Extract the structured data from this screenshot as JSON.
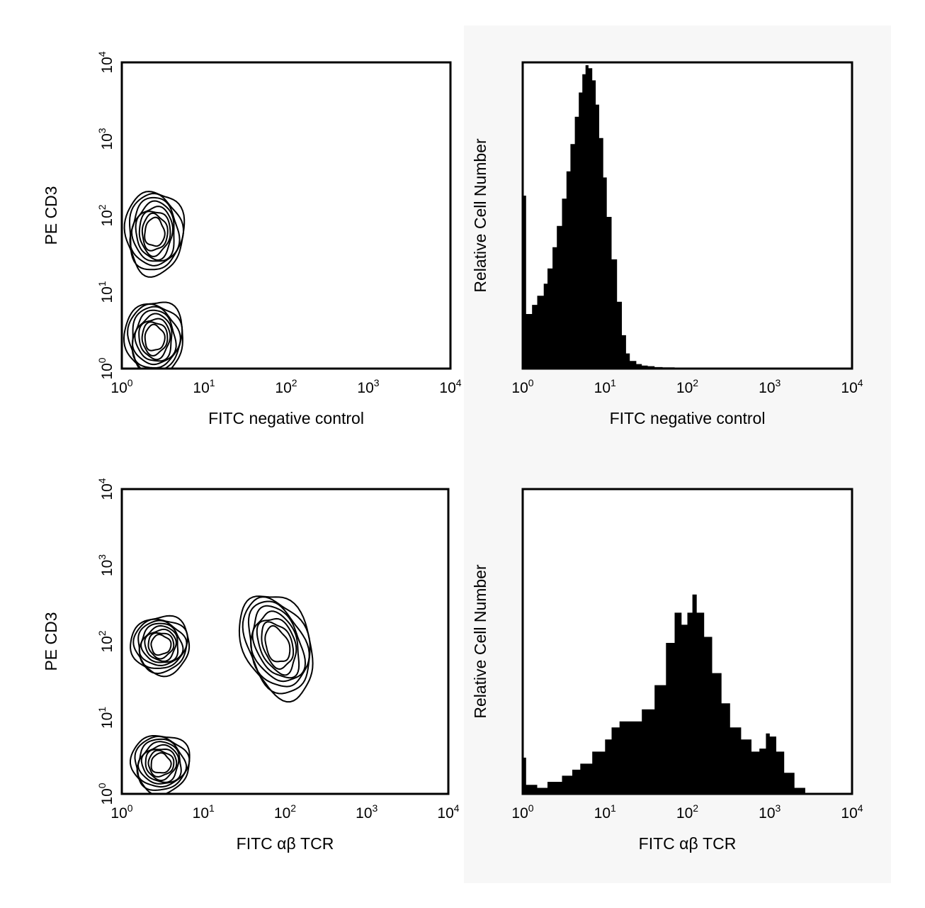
{
  "chart_data": [
    {
      "type": "contour",
      "panel": "top-left",
      "xlabel": "FITC negative control",
      "ylabel": "PE CD3",
      "xscale": "log",
      "yscale": "log",
      "xlim": [
        1,
        10000
      ],
      "ylim": [
        1,
        10000
      ],
      "xticks": [
        {
          "base": "10",
          "exp": "0"
        },
        {
          "base": "10",
          "exp": "1"
        },
        {
          "base": "10",
          "exp": "2"
        },
        {
          "base": "10",
          "exp": "3"
        },
        {
          "base": "10",
          "exp": "4"
        }
      ],
      "yticks": [
        {
          "base": "10",
          "exp": "0"
        },
        {
          "base": "10",
          "exp": "1"
        },
        {
          "base": "10",
          "exp": "2"
        },
        {
          "base": "10",
          "exp": "3"
        },
        {
          "base": "10",
          "exp": "4"
        }
      ],
      "populations": [
        {
          "name": "CD3+ cluster",
          "x_center": 2.5,
          "y_center": 60
        },
        {
          "name": "CD3- cluster",
          "x_center": 2.5,
          "y_center": 2.5
        }
      ],
      "contour_levels": 8
    },
    {
      "type": "histogram",
      "panel": "top-right",
      "xlabel": "FITC negative control",
      "ylabel": "Relative Cell Number",
      "xscale": "log",
      "xlim": [
        1,
        10000
      ],
      "xticks": [
        {
          "base": "10",
          "exp": "0"
        },
        {
          "base": "10",
          "exp": "1"
        },
        {
          "base": "10",
          "exp": "2"
        },
        {
          "base": "10",
          "exp": "3"
        },
        {
          "base": "10",
          "exp": "4"
        }
      ],
      "x": [
        1.0,
        1.1,
        1.3,
        1.5,
        1.8,
        2.0,
        2.3,
        2.6,
        3.0,
        3.4,
        3.8,
        4.3,
        4.8,
        5.3,
        5.8,
        6.3,
        7.0,
        7.7,
        8.5,
        9.5,
        10.5,
        12.0,
        14.0,
        16.0,
        18.0,
        20.0,
        24.0,
        28.0,
        33.0,
        40.0,
        50.0,
        70.0,
        100.0,
        10000.0
      ],
      "values": [
        0.57,
        0.18,
        0.21,
        0.24,
        0.28,
        0.33,
        0.4,
        0.47,
        0.56,
        0.65,
        0.74,
        0.83,
        0.91,
        0.97,
        1.0,
        0.99,
        0.95,
        0.87,
        0.76,
        0.63,
        0.5,
        0.36,
        0.22,
        0.11,
        0.05,
        0.025,
        0.015,
        0.01,
        0.008,
        0.005,
        0.004,
        0.0,
        0.0,
        0.0
      ]
    },
    {
      "type": "contour",
      "panel": "bottom-left",
      "xlabel": "FITC αβ TCR",
      "ylabel": "PE CD3",
      "xscale": "log",
      "yscale": "log",
      "xlim": [
        1,
        10000
      ],
      "ylim": [
        1,
        10000
      ],
      "xticks": [
        {
          "base": "10",
          "exp": "0"
        },
        {
          "base": "10",
          "exp": "1"
        },
        {
          "base": "10",
          "exp": "2"
        },
        {
          "base": "10",
          "exp": "3"
        },
        {
          "base": "10",
          "exp": "4"
        }
      ],
      "yticks": [
        {
          "base": "10",
          "exp": "0"
        },
        {
          "base": "10",
          "exp": "1"
        },
        {
          "base": "10",
          "exp": "2"
        },
        {
          "base": "10",
          "exp": "3"
        },
        {
          "base": "10",
          "exp": "4"
        }
      ],
      "populations": [
        {
          "name": "αβ TCR+ CD3+ cluster",
          "x_center": 80,
          "y_center": 90
        },
        {
          "name": "double-negative cluster",
          "x_center": 3,
          "y_center": 2.5
        },
        {
          "name": "CD3+ TCR- cluster",
          "x_center": 3,
          "y_center": 90
        }
      ],
      "contour_levels": 8
    },
    {
      "type": "histogram",
      "panel": "bottom-right",
      "xlabel": "FITC αβ TCR",
      "ylabel": "Relative Cell Number",
      "xscale": "log",
      "xlim": [
        1,
        10000
      ],
      "xticks": [
        {
          "base": "10",
          "exp": "0"
        },
        {
          "base": "10",
          "exp": "1"
        },
        {
          "base": "10",
          "exp": "2"
        },
        {
          "base": "10",
          "exp": "3"
        },
        {
          "base": "10",
          "exp": "4"
        }
      ],
      "x": [
        1.0,
        1.1,
        1.5,
        2.0,
        3.0,
        4.0,
        5.0,
        7.0,
        10.0,
        12.0,
        15.0,
        20.0,
        28.0,
        40.0,
        55.0,
        70.0,
        85.0,
        100.0,
        115.0,
        130.0,
        160.0,
        200.0,
        260.0,
        330.0,
        450.0,
        600.0,
        750.0,
        900.0,
        1000.0,
        1200.0,
        1500.0,
        2000.0,
        2700.0,
        10000.0
      ],
      "values": [
        0.12,
        0.03,
        0.02,
        0.04,
        0.06,
        0.08,
        0.1,
        0.14,
        0.18,
        0.22,
        0.24,
        0.24,
        0.28,
        0.36,
        0.5,
        0.6,
        0.56,
        0.6,
        0.66,
        0.6,
        0.52,
        0.4,
        0.3,
        0.22,
        0.18,
        0.14,
        0.15,
        0.2,
        0.19,
        0.14,
        0.07,
        0.02,
        0.0,
        0.0
      ]
    }
  ]
}
